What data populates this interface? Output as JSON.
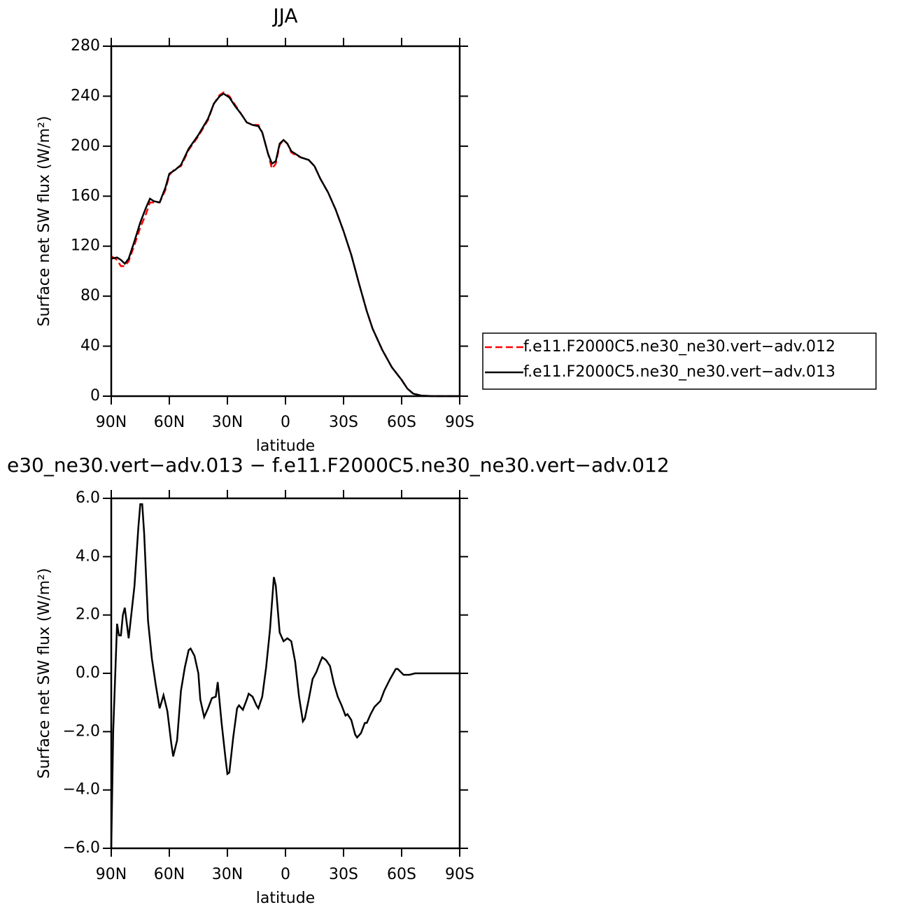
{
  "chart_data": [
    {
      "type": "line",
      "title": "JJA",
      "xlabel": "latitude",
      "ylabel": "Surface net SW flux (W/m²)",
      "x": [
        90,
        87,
        85,
        83,
        81,
        78,
        75,
        72,
        70,
        68,
        65,
        62,
        60,
        57,
        54,
        50,
        45,
        40,
        37,
        34,
        32,
        29,
        26,
        23,
        20,
        17,
        14,
        12,
        9,
        7,
        5,
        3,
        1,
        -1,
        -3,
        -5,
        -8,
        -12,
        -15,
        -18,
        -22,
        -26,
        -30,
        -34,
        -38,
        -42,
        -45,
        -50,
        -55,
        -60,
        -63,
        -66,
        -70,
        -75,
        -80,
        -85,
        -90
      ],
      "series": [
        {
          "name": "f.e11.F2000C5.ne30_ne30.vert−adv.012",
          "color": "#ff0000",
          "line_style": "dashed",
          "values": [
            112,
            109,
            104,
            104,
            108,
            121,
            135,
            146,
            155,
            155,
            155,
            165,
            177,
            182,
            184,
            197,
            208,
            221,
            234,
            241,
            243,
            240,
            233,
            226,
            219,
            217,
            217,
            211,
            194,
            182,
            186,
            201,
            205,
            202,
            195,
            193,
            191,
            189,
            184,
            174,
            163,
            149,
            132,
            113,
            90,
            68,
            54,
            37,
            23,
            13,
            6,
            2,
            0.5,
            0.1,
            0,
            0,
            0
          ]
        },
        {
          "name": "f.e11.F2000C5.ne30_ne30.vert−adv.013",
          "color": "#000000",
          "line_style": "solid",
          "values": [
            110,
            111,
            109,
            106,
            110,
            124,
            139,
            151,
            158,
            156,
            155,
            167,
            178,
            181,
            185,
            198,
            209,
            222,
            234,
            240,
            242,
            239,
            232,
            226,
            219,
            217,
            216,
            211,
            194,
            186,
            188,
            202,
            205,
            202,
            196,
            194,
            191,
            189,
            184,
            174,
            163,
            149,
            132,
            113,
            90,
            68,
            54,
            37,
            23,
            13,
            6,
            2,
            0.5,
            0.1,
            0,
            0,
            0
          ]
        }
      ],
      "xlim": [
        90,
        -90
      ],
      "ylim": [
        0,
        280
      ],
      "xticks": [
        {
          "value": 90,
          "label": "90N"
        },
        {
          "value": 60,
          "label": "60N"
        },
        {
          "value": 30,
          "label": "30N"
        },
        0,
        {
          "value": -30,
          "label": "30S"
        },
        {
          "value": -60,
          "label": "60S"
        },
        {
          "value": -90,
          "label": "90S"
        }
      ],
      "yticks": [
        0,
        40,
        80,
        120,
        160,
        200,
        240,
        280
      ],
      "legend": "right"
    },
    {
      "type": "line",
      "title": "e30_ne30.vert−adv.013 − f.e11.F2000C5.ne30_ne30.vert−adv.012",
      "xlabel": "latitude",
      "ylabel": "Surface net SW flux (W/m²)",
      "x": [
        90,
        89,
        87,
        86,
        85,
        84,
        83,
        81,
        80,
        78,
        76,
        75,
        74,
        73,
        71,
        69,
        67,
        65,
        63,
        61,
        59,
        58,
        56,
        54,
        52,
        50,
        49,
        47,
        45,
        44,
        42,
        40,
        38,
        36,
        35,
        33,
        31,
        30,
        29,
        27,
        25,
        24,
        22,
        20,
        19,
        17,
        15,
        14,
        12,
        10,
        8,
        6,
        5,
        4,
        3,
        1,
        -1,
        -3,
        -5,
        -7,
        -9,
        -10,
        -12,
        -14,
        -16,
        -18,
        -19,
        -21,
        -23,
        -25,
        -27,
        -29,
        -31,
        -32,
        -34,
        -36,
        -37,
        -39,
        -41,
        -42,
        -44,
        -46,
        -49,
        -51,
        -54,
        -57,
        -58,
        -61,
        -64,
        -67,
        -75,
        -90
      ],
      "values": [
        -6.0,
        -2.0,
        1.7,
        1.3,
        1.3,
        2.0,
        2.25,
        1.2,
        1.8,
        3.0,
        5.0,
        5.8,
        5.8,
        4.8,
        1.8,
        0.5,
        -0.4,
        -1.2,
        -0.75,
        -1.3,
        -2.4,
        -2.85,
        -2.3,
        -0.6,
        0.2,
        0.8,
        0.85,
        0.6,
        0.0,
        -0.9,
        -1.5,
        -1.2,
        -0.85,
        -0.8,
        -0.3,
        -1.7,
        -2.9,
        -3.45,
        -3.4,
        -2.2,
        -1.2,
        -1.1,
        -1.25,
        -0.9,
        -0.7,
        -0.8,
        -1.1,
        -1.2,
        -0.8,
        0.2,
        1.5,
        3.3,
        3.0,
        2.2,
        1.4,
        1.1,
        1.2,
        1.1,
        0.4,
        -0.8,
        -1.65,
        -1.55,
        -0.9,
        -0.2,
        0.05,
        0.4,
        0.55,
        0.45,
        0.25,
        -0.35,
        -0.8,
        -1.1,
        -1.45,
        -1.4,
        -1.6,
        -2.1,
        -2.2,
        -2.05,
        -1.7,
        -1.7,
        -1.4,
        -1.15,
        -0.95,
        -0.6,
        -0.2,
        0.15,
        0.15,
        -0.05,
        -0.05,
        0.0,
        0.0,
        0.0
      ],
      "color": "#000000",
      "xlim": [
        90,
        -90
      ],
      "ylim": [
        -6,
        6
      ],
      "xticks": [
        {
          "value": 90,
          "label": "90N"
        },
        {
          "value": 60,
          "label": "60N"
        },
        {
          "value": 30,
          "label": "30N"
        },
        0,
        {
          "value": -30,
          "label": "30S"
        },
        {
          "value": -60,
          "label": "60S"
        },
        {
          "value": -90,
          "label": "90S"
        }
      ],
      "yticks": [
        {
          "value": -6,
          "label": "−6.0"
        },
        {
          "value": -4,
          "label": "−4.0"
        },
        {
          "value": -2,
          "label": "−2.0"
        },
        {
          "value": 0,
          "label": "0.0"
        },
        {
          "value": 2,
          "label": "2.0"
        },
        {
          "value": 4,
          "label": "4.0"
        },
        {
          "value": 6,
          "label": "6.0"
        }
      ]
    }
  ]
}
